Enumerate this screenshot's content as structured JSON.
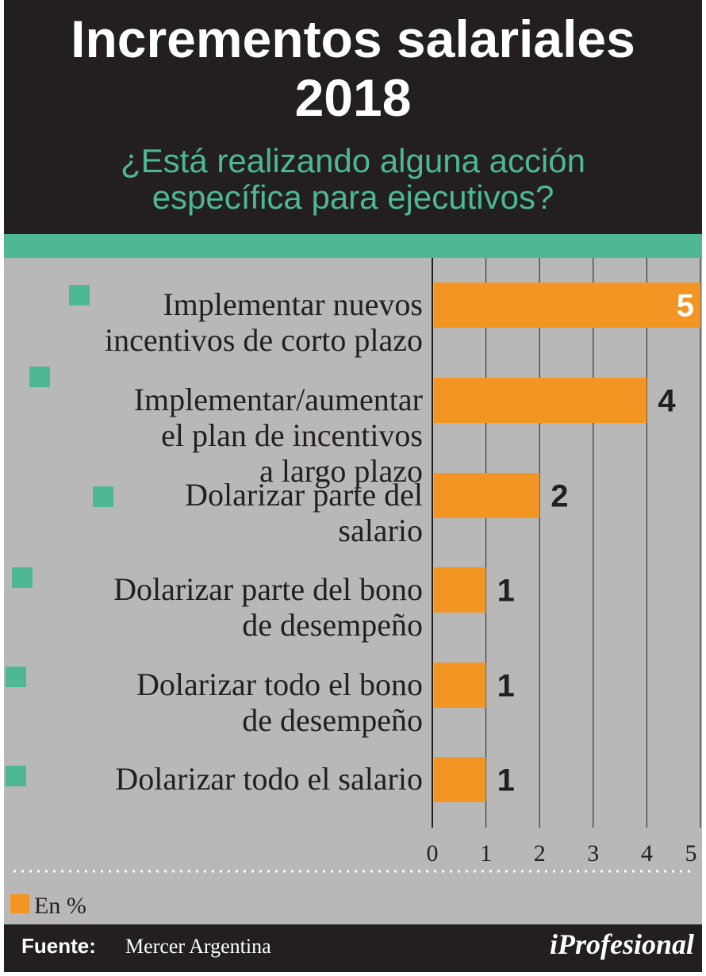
{
  "header": {
    "title_line1": "Incrementos salariales",
    "title_line2": "2018",
    "subtitle_line1": "¿Está realizando alguna acción",
    "subtitle_line2": "específica para ejecutivos?"
  },
  "legend": {
    "label": "En %"
  },
  "footer": {
    "source_label": "Fuente:",
    "source_value": "Mercer Argentina",
    "brand": "iProfesional"
  },
  "colors": {
    "bar": "#f29522",
    "marker": "#4db892",
    "header_bg": "#231f20",
    "chart_bg": "#b8b8b8"
  },
  "chart_data": {
    "type": "bar",
    "orientation": "horizontal",
    "categories": [
      [
        "Implementar nuevos",
        "incentivos de corto plazo"
      ],
      [
        "Implementar/aumentar",
        "el plan de incentivos",
        "a largo plazo"
      ],
      [
        "Dolarizar parte del",
        "salario"
      ],
      [
        "Dolarizar parte del bono",
        "de desempeño"
      ],
      [
        "Dolarizar todo el bono",
        "de desempeño"
      ],
      [
        "Dolarizar todo el salario"
      ]
    ],
    "values": [
      5,
      4,
      2,
      1,
      1,
      1
    ],
    "xlim": [
      0,
      5
    ],
    "xticks": [
      0,
      1,
      2,
      3,
      4,
      5
    ],
    "grid": true,
    "unit": "En %"
  }
}
